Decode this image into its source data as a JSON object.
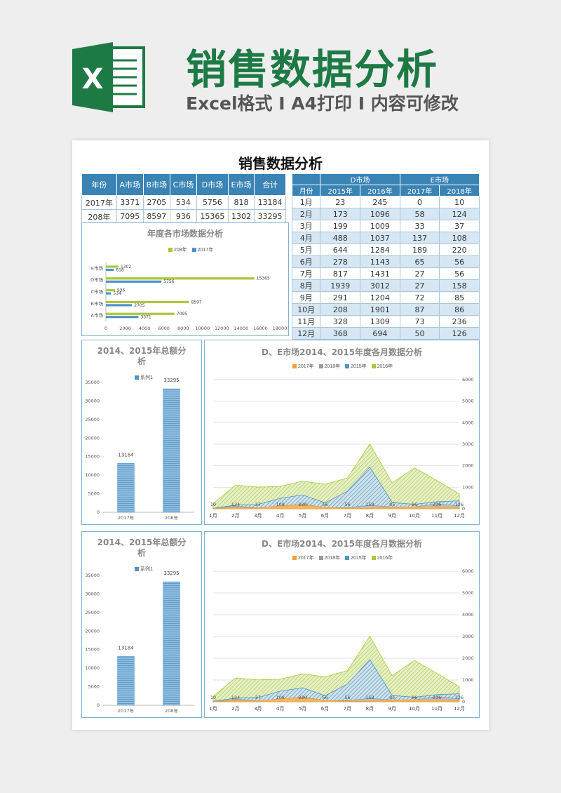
{
  "banner": {
    "title": "销售数据分析",
    "subtitle": "Excel格式 I A4打印 I 内容可修改",
    "logo_letter": "X"
  },
  "document": {
    "title": "销售数据分析"
  },
  "summary_table": {
    "headers": [
      "年份",
      "A市场",
      "B市场",
      "C市场",
      "D市场",
      "E市场",
      "合计"
    ],
    "rows": [
      [
        "2017年",
        "3371",
        "2705",
        "534",
        "5756",
        "818",
        "13184"
      ],
      [
        "208年",
        "7095",
        "8597",
        "936",
        "15365",
        "1302",
        "33295"
      ]
    ]
  },
  "monthly_table": {
    "group_headers": [
      "D市场",
      "E市场"
    ],
    "headers": [
      "月份",
      "2015年",
      "2016年",
      "2017年",
      "2018年"
    ],
    "rows": [
      [
        "1月",
        "23",
        "245",
        "0",
        "10"
      ],
      [
        "2月",
        "173",
        "1096",
        "58",
        "124"
      ],
      [
        "3月",
        "199",
        "1009",
        "33",
        "37"
      ],
      [
        "4月",
        "488",
        "1037",
        "137",
        "108"
      ],
      [
        "5月",
        "644",
        "1284",
        "189",
        "220"
      ],
      [
        "6月",
        "278",
        "1143",
        "65",
        "56"
      ],
      [
        "7月",
        "817",
        "1431",
        "27",
        "56"
      ],
      [
        "8月",
        "1939",
        "3012",
        "27",
        "158"
      ],
      [
        "9月",
        "291",
        "1204",
        "72",
        "85"
      ],
      [
        "10月",
        "208",
        "1901",
        "87",
        "86"
      ],
      [
        "11月",
        "328",
        "1309",
        "73",
        "236"
      ],
      [
        "12月",
        "368",
        "694",
        "50",
        "126"
      ]
    ]
  },
  "colors": {
    "green": "#a9c73a",
    "blue": "#4f94c7",
    "orange": "#f0a030",
    "gray": "#9a9a9a",
    "header": "#3a83b5",
    "banner": "#1e7a45"
  },
  "chart_data": [
    {
      "type": "bar",
      "orientation": "horizontal",
      "title": "年度各市场数据分析",
      "categories": [
        "A市场",
        "B市场",
        "C市场",
        "D市场",
        "E市场"
      ],
      "series": [
        {
          "name": "208年",
          "values": [
            7095,
            8597,
            936,
            15365,
            1302
          ]
        },
        {
          "name": "2017年",
          "values": [
            3371,
            2705,
            534,
            5756,
            818
          ]
        }
      ],
      "xlim": [
        0,
        18000
      ],
      "xticks": [
        "0",
        "2000",
        "4000",
        "6000",
        "8000",
        "10000",
        "12000",
        "14000",
        "16000",
        "18000"
      ],
      "legend": "top"
    },
    {
      "type": "bar",
      "title": "2014、2015年总额分析",
      "categories": [
        "2017年",
        "208年"
      ],
      "series": [
        {
          "name": "系列1",
          "values": [
            13184,
            33295
          ]
        }
      ],
      "ylim": [
        0,
        35000
      ],
      "yticks": [
        "0",
        "5000",
        "10000",
        "15000",
        "20000",
        "25000",
        "30000",
        "35000"
      ],
      "legend": "top"
    },
    {
      "type": "area",
      "title": "D、E市场2014、2015年度各月数据分析",
      "categories": [
        "1月",
        "2月",
        "3月",
        "4月",
        "5月",
        "6月",
        "7月",
        "8月",
        "9月",
        "10月",
        "11月",
        "12月"
      ],
      "series": [
        {
          "name": "2017年",
          "values": [
            0,
            58,
            33,
            137,
            189,
            65,
            27,
            27,
            72,
            87,
            73,
            50
          ]
        },
        {
          "name": "2018年",
          "values": [
            10,
            124,
            37,
            108,
            220,
            56,
            56,
            158,
            85,
            86,
            236,
            126
          ]
        },
        {
          "name": "2015年",
          "values": [
            23,
            173,
            199,
            488,
            644,
            278,
            817,
            1939,
            291,
            208,
            328,
            368
          ]
        },
        {
          "name": "2016年",
          "values": [
            245,
            1096,
            1009,
            1037,
            1284,
            1143,
            1431,
            3012,
            1204,
            1901,
            1309,
            694
          ]
        }
      ],
      "data_labels": [
        "10",
        "124",
        "37",
        "108",
        "220",
        "56",
        "56",
        "158",
        "85",
        "86",
        "236",
        "126"
      ],
      "ylim": [
        0,
        6000
      ],
      "yticks": [
        "0",
        "1000",
        "2000",
        "3000",
        "4000",
        "5000",
        "6000"
      ],
      "y_axis_side": "right",
      "legend": "top",
      "grid": true
    }
  ]
}
